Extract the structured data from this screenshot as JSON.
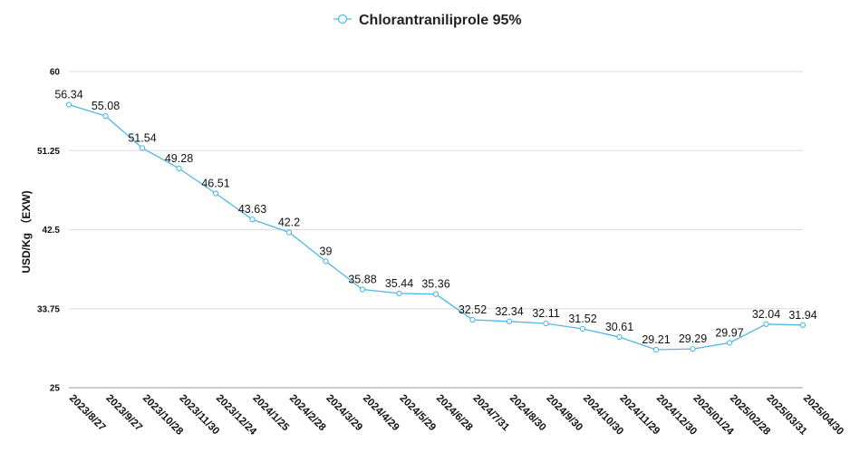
{
  "chart_data": {
    "type": "line",
    "title": "",
    "ylabel": "USD/Kg （EXW)",
    "xlabel": "",
    "ylim": [
      25,
      60
    ],
    "yticks": [
      25,
      33.75,
      42.5,
      51.25,
      60
    ],
    "ytick_labels": [
      "25",
      "33.75",
      "42.5",
      "51.25",
      "60"
    ],
    "grid": true,
    "legend_position": "top-center",
    "categories": [
      "2023/8/27",
      "2023/9/27",
      "2023/10/28",
      "2023/11/30",
      "2023/12/24",
      "2024/1/25",
      "2024/2/28",
      "2024/3/29",
      "2024/4/29",
      "2024/5/29",
      "2024/6/28",
      "2024/7/31",
      "2024/8/30",
      "2024/9/30",
      "2024/10/30",
      "2024/11/29",
      "2024/12/30",
      "2025/01/24",
      "2025/02/28",
      "2025/03/31",
      "2025/04/30"
    ],
    "series": [
      {
        "name": "Chlorantraniliprole 95%",
        "color": "#4db8ea",
        "values": [
          56.34,
          55.08,
          51.54,
          49.28,
          46.51,
          43.63,
          42.2,
          39,
          35.88,
          35.44,
          35.36,
          32.52,
          32.34,
          32.11,
          31.52,
          30.61,
          29.21,
          29.29,
          29.97,
          32.04,
          31.94
        ],
        "value_labels": [
          "56.34",
          "55.08",
          "51.54",
          "49.28",
          "46.51",
          "43.63",
          "42.2",
          "39",
          "35.88",
          "35.44",
          "35.36",
          "32.52",
          "32.34",
          "32.11",
          "31.52",
          "30.61",
          "29.21",
          "29.29",
          "29.97",
          "32.04",
          "31.94"
        ]
      }
    ]
  }
}
